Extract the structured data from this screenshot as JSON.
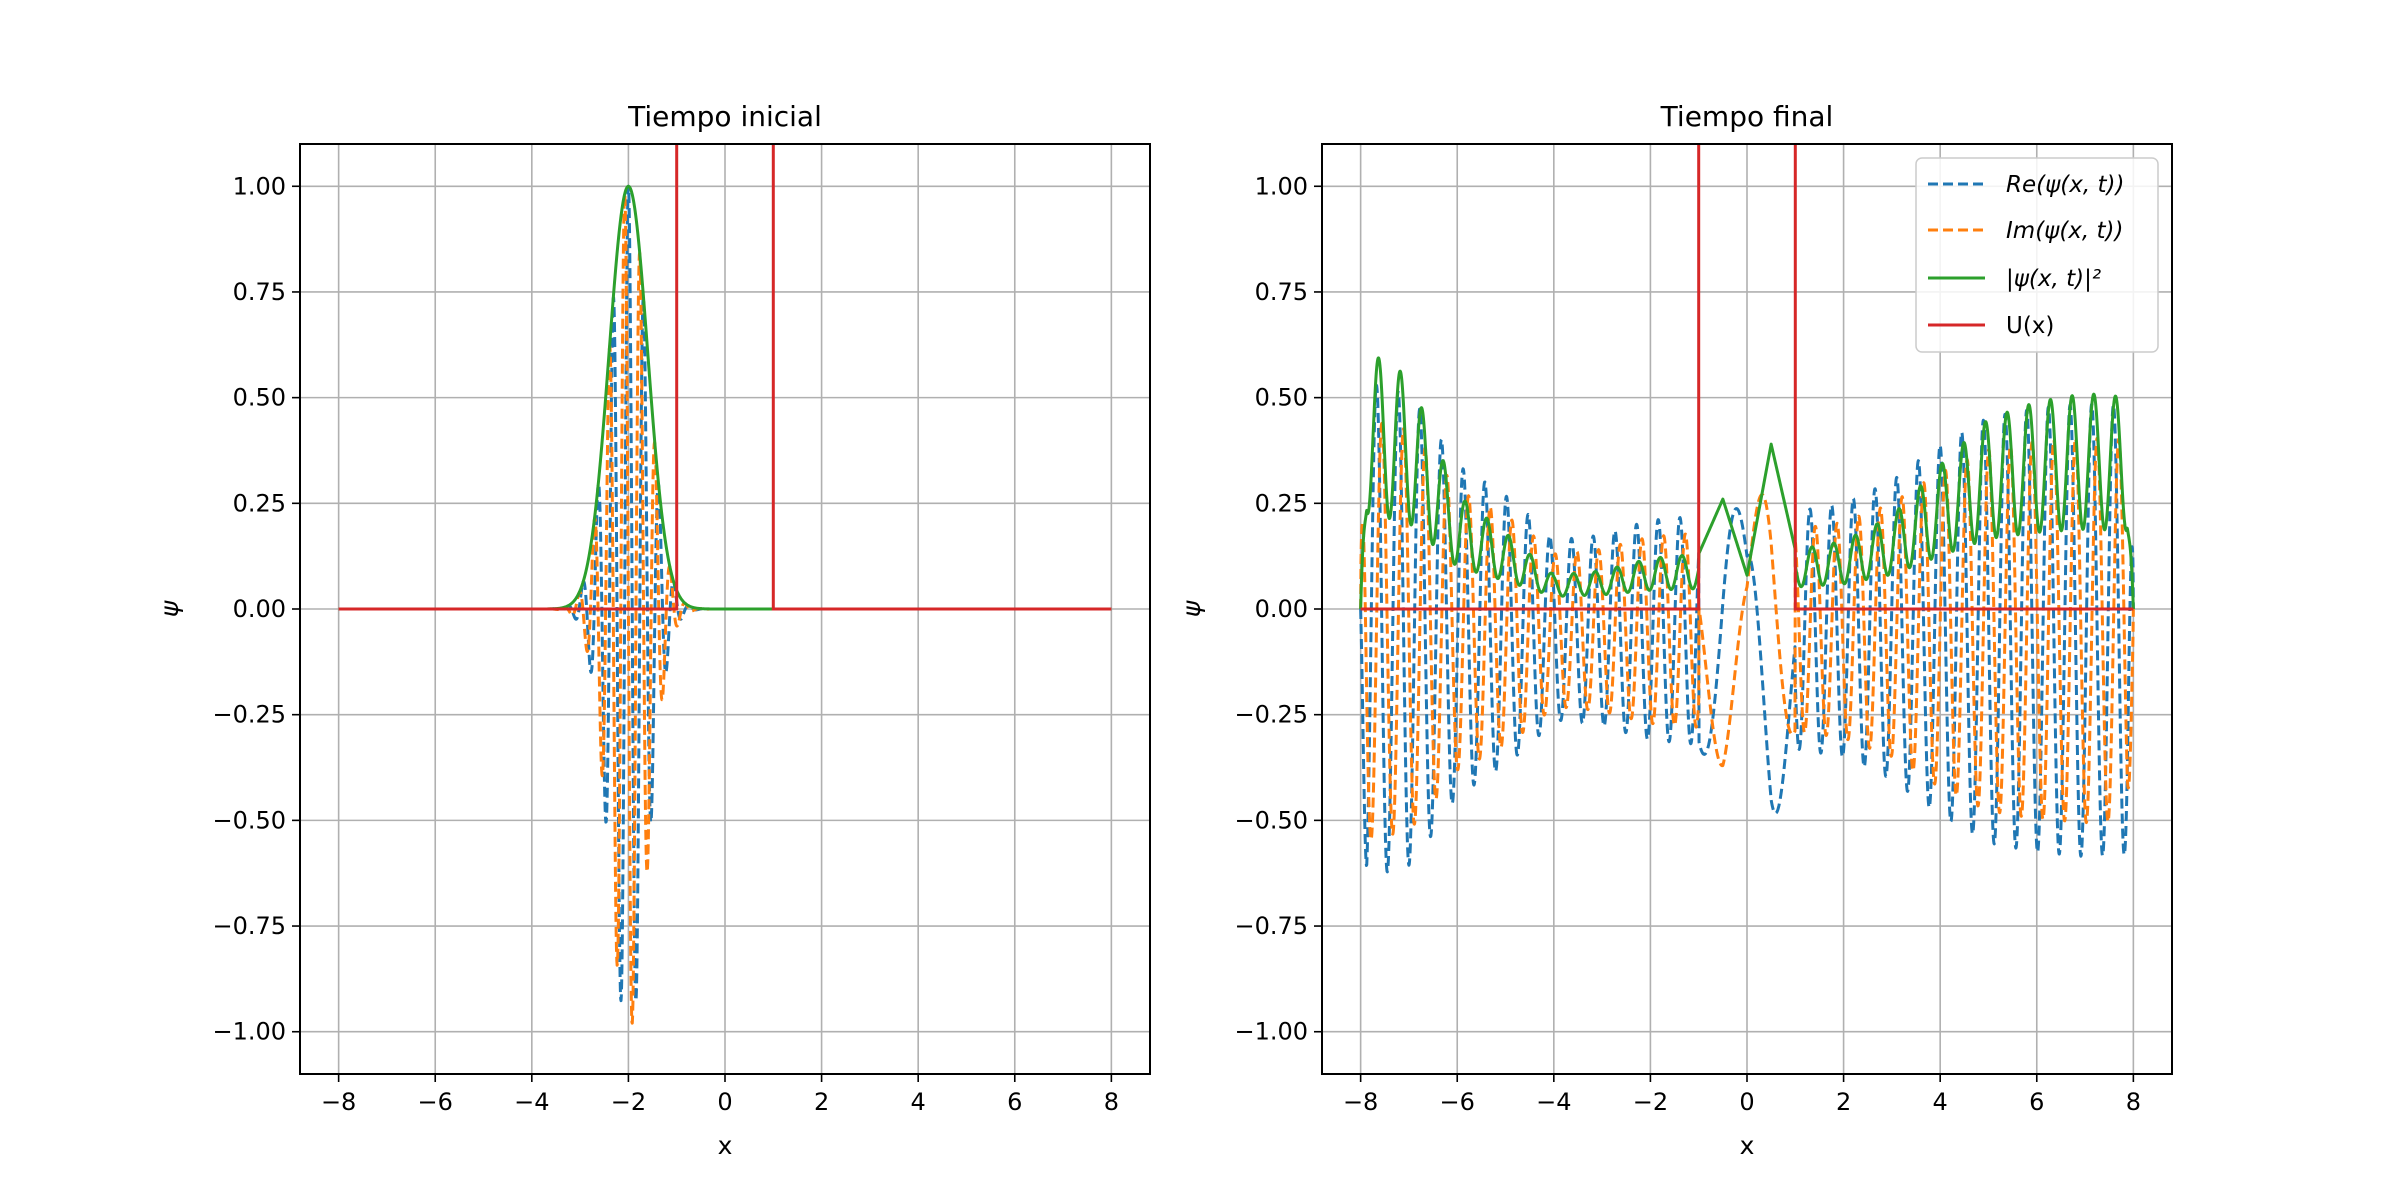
{
  "chart_data": [
    {
      "type": "line",
      "title": "Tiempo inicial",
      "xlabel": "x",
      "ylabel": "ψ",
      "xlim": [
        -8.8,
        8.8
      ],
      "ylim": [
        -1.1,
        1.1
      ],
      "xticks": [
        -8,
        -6,
        -4,
        -2,
        0,
        2,
        4,
        6,
        8
      ],
      "xtick_labels": [
        "−8",
        "−6",
        "−4",
        "−2",
        "0",
        "2",
        "4",
        "6",
        "8"
      ],
      "yticks": [
        1.0,
        0.75,
        0.5,
        0.25,
        0.0,
        -0.25,
        -0.5,
        -0.75,
        -1.0
      ],
      "ytick_labels": [
        "1.00",
        "0.75",
        "0.50",
        "0.25",
        "0.00",
        "−0.25",
        "−0.50",
        "−0.75",
        "−1.00"
      ],
      "grid": true,
      "legend": false,
      "x_range": [
        -8,
        8
      ],
      "series": [
        {
          "key": "re",
          "color": "#1f77b4",
          "dash": true
        },
        {
          "key": "im",
          "color": "#ff7f0e",
          "dash": true
        },
        {
          "key": "abs2",
          "color": "#2ca02c",
          "dash": false
        },
        {
          "key": "U",
          "color": "#d62728",
          "dash": false
        }
      ],
      "wave": {
        "center": -2.0,
        "sigma": 0.4,
        "k": 20
      },
      "barrier": {
        "left": -1,
        "right": 1,
        "height_display": 1.5
      }
    },
    {
      "type": "line",
      "title": "Tiempo final",
      "xlabel": "x",
      "ylabel": "ψ",
      "xlim": [
        -8.8,
        8.8
      ],
      "ylim": [
        -1.1,
        1.1
      ],
      "xticks": [
        -8,
        -6,
        -4,
        -2,
        0,
        2,
        4,
        6,
        8
      ],
      "xtick_labels": [
        "−8",
        "−6",
        "−4",
        "−2",
        "0",
        "2",
        "4",
        "6",
        "8"
      ],
      "yticks": [
        1.0,
        0.75,
        0.5,
        0.25,
        0.0,
        -0.25,
        -0.5,
        -0.75,
        -1.0
      ],
      "ytick_labels": [
        "1.00",
        "0.75",
        "0.50",
        "0.25",
        "0.00",
        "−0.25",
        "−0.50",
        "−0.75",
        "−1.00"
      ],
      "grid": true,
      "legend": true,
      "legend_position": "top-right",
      "x_range": [
        -8,
        8
      ],
      "series": [
        {
          "key": "re",
          "name": "Re(ψ(x, t))",
          "color": "#1f77b4",
          "dash": true
        },
        {
          "key": "im",
          "name": "Im(ψ(x, t))",
          "color": "#ff7f0e",
          "dash": true
        },
        {
          "key": "abs2",
          "name": "|ψ(x, t)|²",
          "color": "#2ca02c",
          "dash": false
        },
        {
          "key": "U",
          "name": "U(x)",
          "color": "#d62728",
          "dash": false
        }
      ],
      "envelope_points": [
        [
          -8.0,
          0.62
        ],
        [
          -7.0,
          0.55
        ],
        [
          -6.0,
          0.27
        ],
        [
          -5.0,
          0.18
        ],
        [
          -4.0,
          0.08
        ],
        [
          -3.0,
          0.09
        ],
        [
          -2.0,
          0.12
        ],
        [
          -1.0,
          0.13
        ],
        [
          -0.5,
          0.26
        ],
        [
          0.0,
          0.08
        ],
        [
          0.5,
          0.39
        ],
        [
          1.0,
          0.14
        ],
        [
          2.0,
          0.16
        ],
        [
          3.0,
          0.22
        ],
        [
          4.0,
          0.34
        ],
        [
          5.0,
          0.45
        ],
        [
          6.0,
          0.49
        ],
        [
          7.0,
          0.51
        ],
        [
          8.0,
          0.5
        ]
      ],
      "barrier": {
        "left": -1,
        "right": 1,
        "height_display": 1.5
      }
    }
  ]
}
